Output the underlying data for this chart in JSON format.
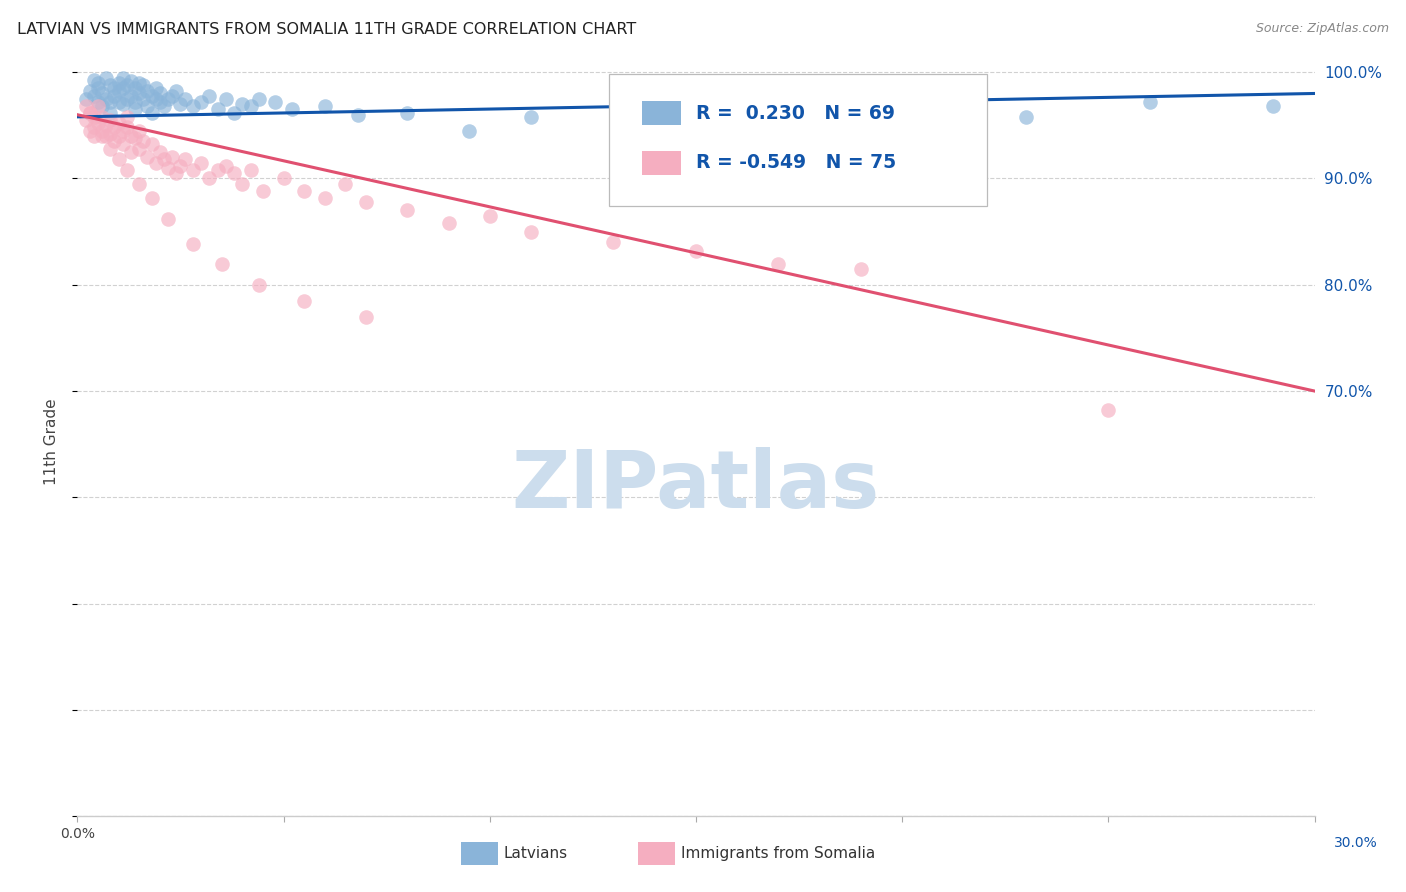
{
  "title": "LATVIAN VS IMMIGRANTS FROM SOMALIA 11TH GRADE CORRELATION CHART",
  "source": "Source: ZipAtlas.com",
  "ylabel": "11th Grade",
  "xmin": 0.0,
  "xmax": 0.3,
  "ymin": 0.3,
  "ymax": 1.005,
  "legend_latvians_R": "R =  0.230",
  "legend_latvians_N": "N = 69",
  "legend_somalia_R": "R = -0.549",
  "legend_somalia_N": "N = 75",
  "blue_color": "#8ab4d9",
  "pink_color": "#f5aec0",
  "blue_line_color": "#1155aa",
  "pink_line_color": "#e05070",
  "legend_text_color": "#1155aa",
  "watermark_color": "#ccdded",
  "grid_color": "#cccccc",
  "background_color": "#ffffff",
  "title_color": "#222222",
  "source_color": "#888888",
  "ytick_color": "#1155aa",
  "yticks": [
    0.3,
    0.4,
    0.5,
    0.6,
    0.7,
    0.8,
    0.9,
    1.0
  ],
  "ytick_labels_right": [
    "",
    "",
    "",
    "",
    "70.0%",
    "80.0%",
    "90.0%",
    "100.0%"
  ],
  "xticks": [
    0.0,
    0.05,
    0.1,
    0.15,
    0.2,
    0.25,
    0.3
  ],
  "blue_trendline_x": [
    0.0,
    0.3
  ],
  "blue_trendline_y": [
    0.958,
    0.98
  ],
  "pink_trendline_x": [
    0.0,
    0.3
  ],
  "pink_trendline_y": [
    0.96,
    0.7
  ],
  "latvians_x": [
    0.002,
    0.003,
    0.004,
    0.004,
    0.005,
    0.005,
    0.005,
    0.006,
    0.006,
    0.007,
    0.007,
    0.008,
    0.008,
    0.008,
    0.009,
    0.009,
    0.01,
    0.01,
    0.01,
    0.011,
    0.011,
    0.011,
    0.012,
    0.012,
    0.013,
    0.013,
    0.014,
    0.014,
    0.014,
    0.015,
    0.015,
    0.016,
    0.016,
    0.017,
    0.017,
    0.018,
    0.018,
    0.019,
    0.019,
    0.02,
    0.02,
    0.021,
    0.022,
    0.023,
    0.024,
    0.025,
    0.026,
    0.028,
    0.03,
    0.032,
    0.034,
    0.036,
    0.038,
    0.04,
    0.042,
    0.044,
    0.048,
    0.052,
    0.06,
    0.068,
    0.08,
    0.095,
    0.11,
    0.14,
    0.17,
    0.2,
    0.23,
    0.26,
    0.29
  ],
  "latvians_y": [
    0.975,
    0.982,
    0.978,
    0.993,
    0.985,
    0.972,
    0.99,
    0.98,
    0.968,
    0.995,
    0.975,
    0.988,
    0.972,
    0.962,
    0.985,
    0.978,
    0.99,
    0.982,
    0.972,
    0.995,
    0.985,
    0.97,
    0.988,
    0.975,
    0.992,
    0.978,
    0.985,
    0.972,
    0.965,
    0.99,
    0.98,
    0.988,
    0.975,
    0.982,
    0.968,
    0.978,
    0.962,
    0.985,
    0.975,
    0.98,
    0.972,
    0.968,
    0.975,
    0.978,
    0.982,
    0.97,
    0.975,
    0.968,
    0.972,
    0.978,
    0.965,
    0.975,
    0.962,
    0.97,
    0.968,
    0.975,
    0.972,
    0.965,
    0.968,
    0.96,
    0.962,
    0.945,
    0.958,
    0.955,
    0.948,
    0.965,
    0.958,
    0.972,
    0.968
  ],
  "somalia_x": [
    0.002,
    0.002,
    0.003,
    0.003,
    0.004,
    0.004,
    0.005,
    0.005,
    0.006,
    0.006,
    0.007,
    0.007,
    0.008,
    0.008,
    0.009,
    0.009,
    0.01,
    0.01,
    0.011,
    0.011,
    0.012,
    0.012,
    0.013,
    0.013,
    0.014,
    0.015,
    0.015,
    0.016,
    0.017,
    0.018,
    0.019,
    0.02,
    0.021,
    0.022,
    0.023,
    0.024,
    0.025,
    0.026,
    0.028,
    0.03,
    0.032,
    0.034,
    0.036,
    0.038,
    0.04,
    0.042,
    0.045,
    0.05,
    0.055,
    0.06,
    0.065,
    0.07,
    0.08,
    0.09,
    0.1,
    0.11,
    0.13,
    0.15,
    0.17,
    0.19,
    0.003,
    0.004,
    0.006,
    0.008,
    0.01,
    0.012,
    0.015,
    0.018,
    0.022,
    0.028,
    0.035,
    0.044,
    0.055,
    0.07,
    0.25
  ],
  "somalia_y": [
    0.968,
    0.955,
    0.962,
    0.945,
    0.958,
    0.94,
    0.952,
    0.968,
    0.945,
    0.958,
    0.94,
    0.95,
    0.955,
    0.942,
    0.948,
    0.935,
    0.952,
    0.94,
    0.945,
    0.932,
    0.948,
    0.958,
    0.94,
    0.925,
    0.938,
    0.945,
    0.928,
    0.935,
    0.92,
    0.932,
    0.915,
    0.925,
    0.918,
    0.91,
    0.92,
    0.905,
    0.912,
    0.918,
    0.908,
    0.915,
    0.9,
    0.908,
    0.912,
    0.905,
    0.895,
    0.908,
    0.888,
    0.9,
    0.888,
    0.882,
    0.895,
    0.878,
    0.87,
    0.858,
    0.865,
    0.85,
    0.84,
    0.832,
    0.82,
    0.815,
    0.962,
    0.948,
    0.94,
    0.928,
    0.918,
    0.908,
    0.895,
    0.882,
    0.862,
    0.838,
    0.82,
    0.8,
    0.785,
    0.77,
    0.682
  ]
}
